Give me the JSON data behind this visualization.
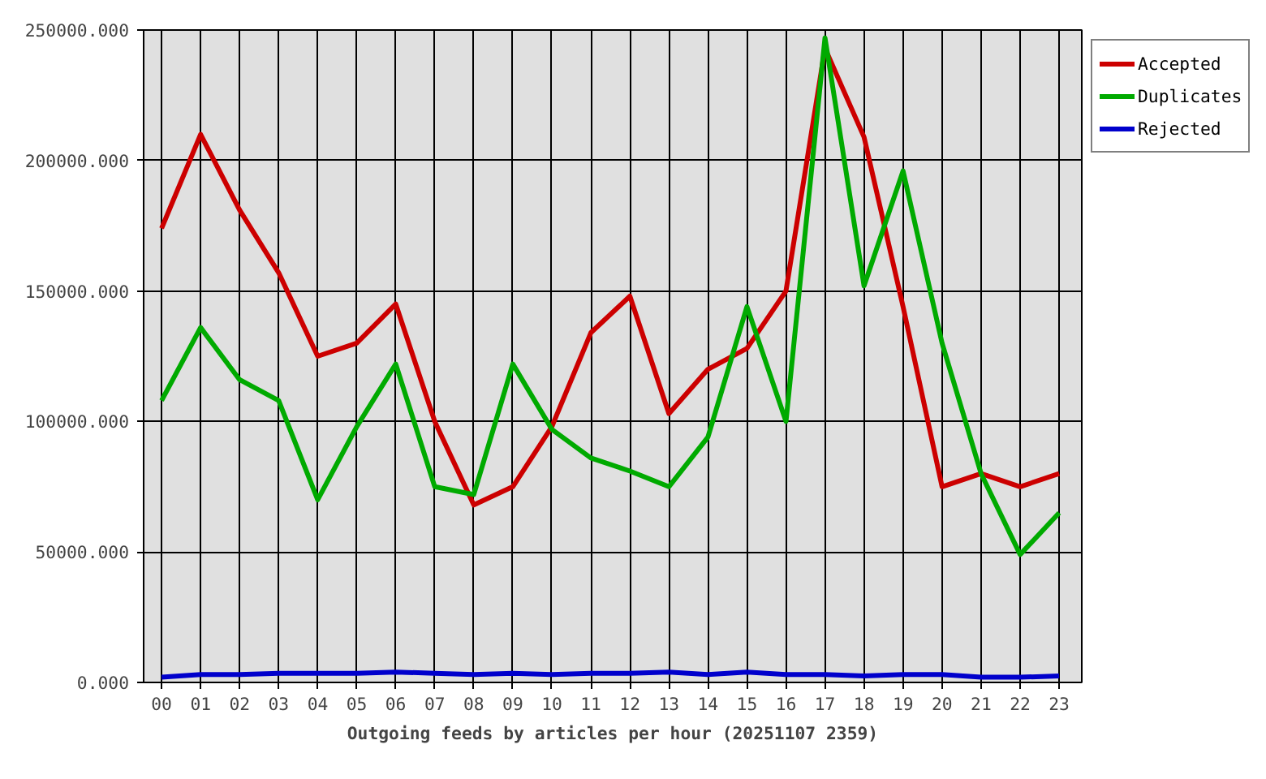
{
  "chart_data": {
    "type": "line",
    "xlabel": "Outgoing feeds by articles per hour (20251107 2359)",
    "categories": [
      "00",
      "01",
      "02",
      "03",
      "04",
      "05",
      "06",
      "07",
      "08",
      "09",
      "10",
      "11",
      "12",
      "13",
      "14",
      "15",
      "16",
      "17",
      "18",
      "19",
      "20",
      "21",
      "22",
      "23"
    ],
    "series": [
      {
        "name": "Accepted",
        "color": "#cc0000",
        "values": [
          174000,
          210000,
          181000,
          157000,
          125000,
          130000,
          145000,
          100000,
          68000,
          75000,
          98000,
          134000,
          148000,
          103000,
          120000,
          128000,
          150000,
          243000,
          209000,
          144000,
          75000,
          80000,
          75000,
          80000
        ]
      },
      {
        "name": "Duplicates",
        "color": "#00aa00",
        "values": [
          108000,
          136000,
          116000,
          108000,
          70000,
          98000,
          122000,
          75000,
          72000,
          122000,
          97000,
          86000,
          81000,
          75000,
          94000,
          144000,
          100000,
          247000,
          152000,
          196000,
          130000,
          80000,
          49000,
          65000
        ]
      },
      {
        "name": "Rejected",
        "color": "#0000cc",
        "values": [
          2000,
          3000,
          3000,
          3500,
          3500,
          3500,
          4000,
          3500,
          3000,
          3500,
          3000,
          3500,
          3500,
          4000,
          3000,
          4000,
          3000,
          3000,
          2500,
          3000,
          3000,
          2000,
          2000,
          2500
        ]
      }
    ],
    "ylim": [
      0,
      250000
    ],
    "yticks": [
      {
        "value": 0,
        "label": "0.000"
      },
      {
        "value": 50000,
        "label": "50000.000"
      },
      {
        "value": 100000,
        "label": "100000.000"
      },
      {
        "value": 150000,
        "label": "150000.000"
      },
      {
        "value": 200000,
        "label": "200000.000"
      },
      {
        "value": 250000,
        "label": "250000.000"
      }
    ],
    "grid": true,
    "legend": "top right",
    "line_style": "solid"
  }
}
